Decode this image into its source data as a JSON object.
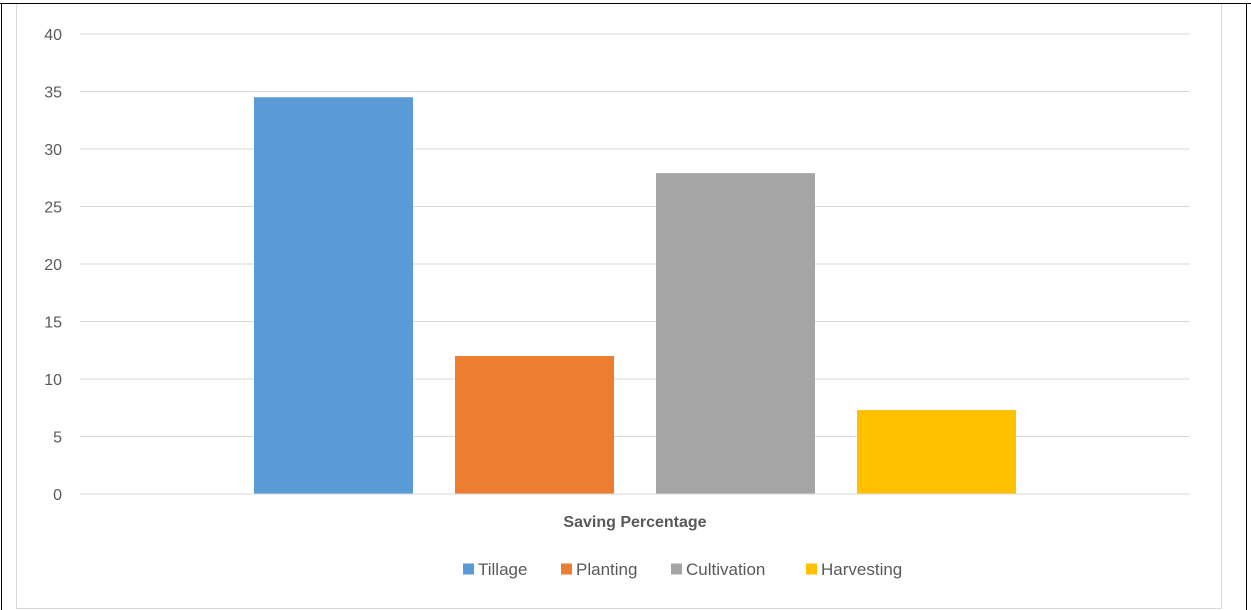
{
  "chart_data": {
    "type": "bar",
    "title": "",
    "xlabel": "Saving Percentage",
    "ylabel": "",
    "ylim": [
      0,
      40
    ],
    "yticks": [
      0,
      5,
      10,
      15,
      20,
      25,
      30,
      35,
      40
    ],
    "grid": true,
    "legend_position": "bottom",
    "series": [
      {
        "name": "Tillage",
        "values": [
          34.5
        ],
        "color": "#5b9bd5"
      },
      {
        "name": "Planting",
        "values": [
          12
        ],
        "color": "#ed7d31"
      },
      {
        "name": "Cultivation",
        "values": [
          27.9
        ],
        "color": "#a5a5a5"
      },
      {
        "name": "Harvesting",
        "values": [
          7.3
        ],
        "color": "#ffc000"
      }
    ],
    "categories": [
      "Saving Percentage"
    ]
  }
}
